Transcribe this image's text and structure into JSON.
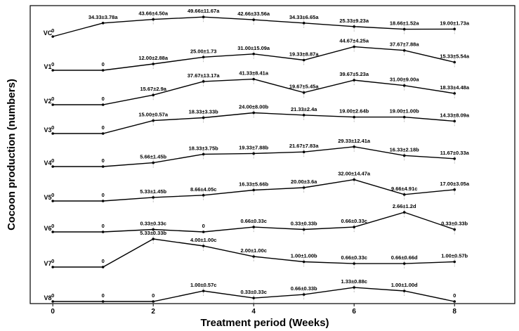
{
  "chart_data": {
    "type": "line",
    "xlabel": "Treatment period (Weeks)",
    "ylabel": "Cocoon production (numbers)",
    "x": [
      0,
      1,
      2,
      3,
      4,
      5,
      6,
      7,
      8
    ],
    "xticks": [
      "0",
      "2",
      "4",
      "6",
      "8"
    ],
    "xlim": [
      -0.45,
      9.2
    ],
    "grid": false,
    "series": [
      {
        "name": "VC",
        "values": [
          0,
          34.33,
          43.66,
          49.66,
          42.66,
          34.33,
          25.33,
          18.66,
          19.0
        ],
        "labels": [
          "0",
          "34.33±3.78a",
          "43.66±4.50a",
          "49.66±11.67a",
          "42.66±33.56a",
          "34.33±6.65a",
          "25.33±9.23a",
          "18.66±1.52a",
          "19.00±1.73a"
        ]
      },
      {
        "name": "V1",
        "values": [
          0,
          0,
          12.0,
          25.0,
          31.0,
          19.33,
          44.67,
          37.67,
          15.33
        ],
        "labels": [
          "0",
          "0",
          "12.00±2.88a",
          "25.00±1.73",
          "31.00±15.09a",
          "19.33±8.87a",
          "44.67±4.25a",
          "37.67±7.88a",
          "15.33±5.54a"
        ]
      },
      {
        "name": "V2",
        "values": [
          0,
          0,
          15.67,
          37.67,
          41.33,
          19.67,
          39.67,
          31.0,
          18.33
        ],
        "labels": [
          "0",
          "0",
          "15.67±2.9a",
          "37.67±13.17a",
          "41.33±8.41a",
          "19.67±5.45a",
          "39.67±5.23a",
          "31.00±9.00a",
          "18.33±4.48a"
        ]
      },
      {
        "name": "V3",
        "values": [
          0,
          0,
          15.0,
          18.33,
          24.0,
          21.33,
          19.0,
          19.0,
          14.33
        ],
        "labels": [
          "0",
          "0",
          "15.00±0.57a",
          "18.33±3.33b",
          "24.00±8.00b",
          "21.33±2.4a",
          "19.00±2.64b",
          "19.00±1.00b",
          "14.33±8.09a"
        ]
      },
      {
        "name": "V4",
        "values": [
          0,
          0,
          5.66,
          18.33,
          19.33,
          21.67,
          29.33,
          16.33,
          11.67
        ],
        "labels": [
          "0",
          "0",
          "5.66±1.45b",
          "18.33±3.75b",
          "19.33±7.88b",
          "21.67±7.83a",
          "29.33±12.41a",
          "16.33±2.18b",
          "11.67±0.33a"
        ]
      },
      {
        "name": "V5",
        "values": [
          0,
          0,
          5.33,
          8.66,
          16.33,
          20.0,
          32.0,
          9.66,
          17.0
        ],
        "labels": [
          "0",
          "0",
          "5.33±1.45b",
          "8.66±4.05c",
          "16.33±5.66b",
          "20.00±3.6a",
          "32.00±14.47a",
          "9.66±4.91c",
          "17.00±3.05a"
        ]
      },
      {
        "name": "V6",
        "values": [
          0,
          0,
          0.33,
          0,
          0.66,
          0.33,
          0.66,
          2.66,
          0.33
        ],
        "labels": [
          "0",
          "0",
          "0.33±0.33c",
          "0",
          "0.66±0.33c",
          "0.33±0.33b",
          "0.66±0.33c",
          "2.66±1.2d",
          "0.33±0.33b"
        ]
      },
      {
        "name": "V7",
        "values": [
          0,
          0,
          5.33,
          4.0,
          2.0,
          1.0,
          0.66,
          0.66,
          1.0
        ],
        "labels": [
          "0",
          "0",
          "5.33±0.33b",
          "4.00±1.00c",
          "2.00±1.00c",
          "1.00±1.00b",
          "0.66±0.33c",
          "0.66±0.66d",
          "1.00±0.57b"
        ]
      },
      {
        "name": "V8",
        "values": [
          0,
          0,
          0,
          1.0,
          0.33,
          0.66,
          1.33,
          1.0,
          0
        ],
        "labels": [
          "0",
          "0",
          "0",
          "1.00±0.57c",
          "0.33±0.33c",
          "0.66±0.33b",
          "1.33±0.88c",
          "1.00±1.00d",
          "0"
        ]
      }
    ]
  }
}
